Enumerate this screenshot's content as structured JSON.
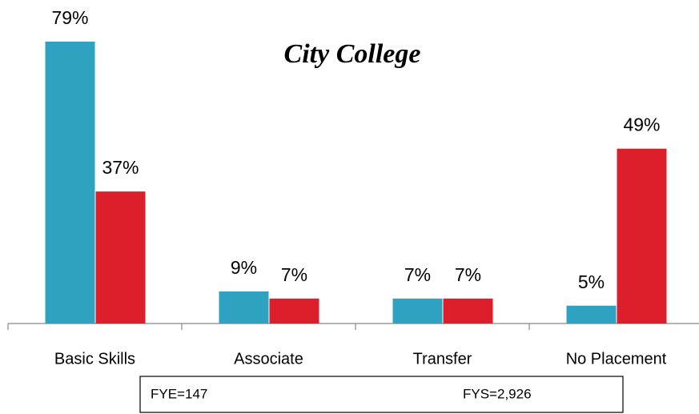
{
  "chart_data": {
    "type": "bar",
    "title": "City College",
    "categories": [
      "Basic Skills",
      "Associate",
      "Transfer",
      "No Placement"
    ],
    "series": [
      {
        "name": "FYE=147",
        "color": "#2ea3c1",
        "values": [
          79,
          9,
          7,
          5
        ],
        "value_labels": [
          "79%",
          "9%",
          "7%",
          "5%"
        ]
      },
      {
        "name": "FYS=2,926",
        "color": "#dc1f2b",
        "values": [
          37,
          7,
          7,
          49
        ],
        "value_labels": [
          "37%",
          "7%",
          "7%",
          "49%"
        ]
      }
    ]
  }
}
